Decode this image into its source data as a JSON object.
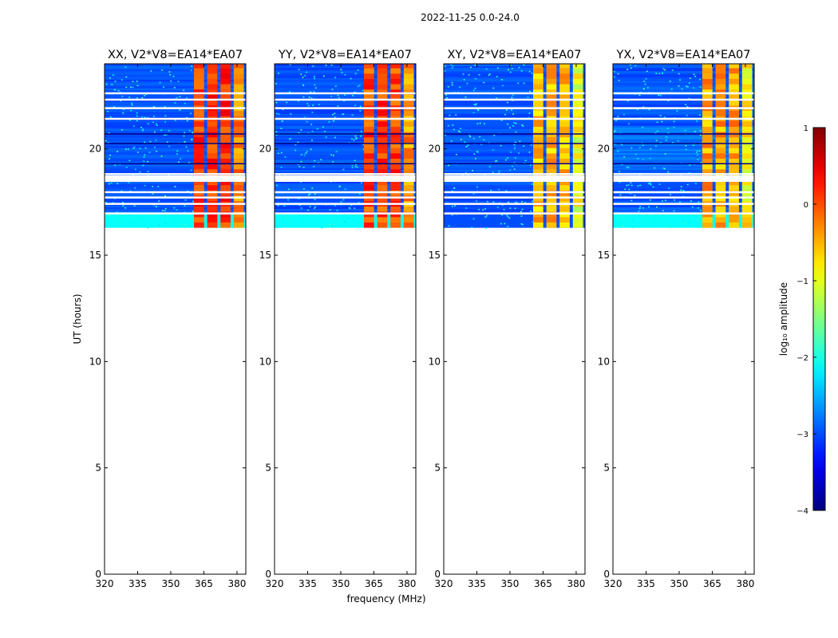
{
  "chart_data": {
    "type": "heatmap",
    "title": "2022-11-25 0.0-24.0",
    "xlabel": "frequency (MHz)",
    "ylabel": "UT (hours)",
    "xlim": [
      320,
      384
    ],
    "ylim": [
      0,
      24
    ],
    "x_ticks": [
      "320",
      "335",
      "350",
      "365",
      "380"
    ],
    "x_tick_values": [
      320,
      335,
      350,
      365,
      380
    ],
    "y_ticks": [
      "0",
      "5",
      "10",
      "15",
      "20"
    ],
    "y_tick_values": [
      0,
      5,
      10,
      15,
      20
    ],
    "data_start_hour": 16.3,
    "data_end_hour": 24,
    "strong_signal_band_mhz": [
      360.5,
      383
    ],
    "panels": [
      {
        "title": "XX, V2*V8=EA14*EA07",
        "band_level": 0.1
      },
      {
        "title": "YY, V2*V8=EA14*EA07",
        "band_level": 0.0
      },
      {
        "title": "XY, V2*V8=EA14*EA07",
        "band_level": -0.6
      },
      {
        "title": "YX, V2*V8=EA14*EA07",
        "band_level": -0.5
      }
    ],
    "colorbar": {
      "label": "log₁₀ amplitude",
      "range": [
        -4,
        1
      ],
      "ticks": [
        "1",
        "0",
        "−1",
        "−2",
        "−3",
        "−4"
      ],
      "tick_values": [
        1,
        0,
        -1,
        -2,
        -3,
        -4
      ],
      "colormap": "jet"
    }
  }
}
